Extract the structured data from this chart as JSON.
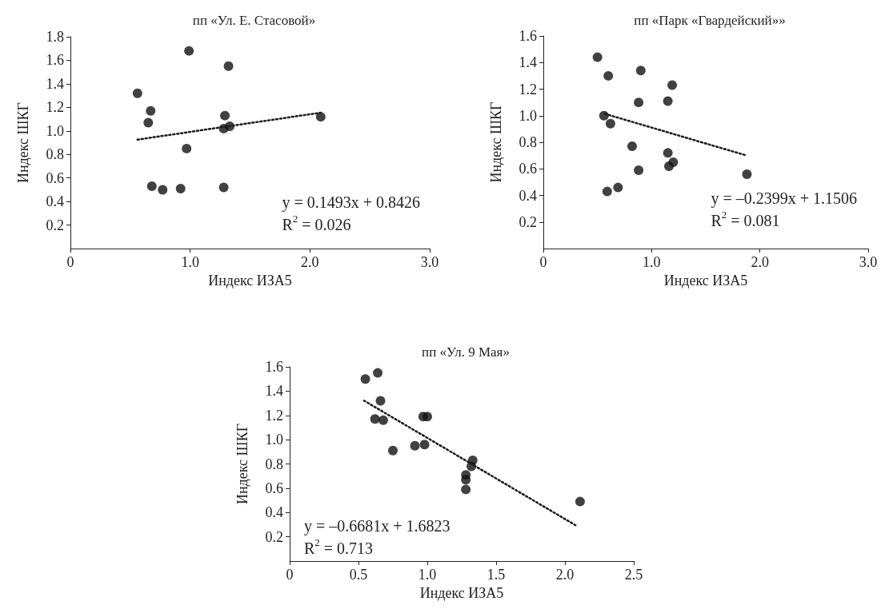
{
  "chart_data": [
    {
      "type": "scatter",
      "title": "пп «Ул. Е. Стасовой»",
      "xlabel": "Индекс ИЗА5",
      "ylabel": "Индекс ШКГ",
      "marker": "circle",
      "grid": false,
      "xlim": [
        0,
        3
      ],
      "xticks": [
        {
          "value": 0,
          "label": "0"
        },
        {
          "value": 1,
          "label": "1.0"
        },
        {
          "value": 2,
          "label": "2.0"
        },
        {
          "value": 3,
          "label": "3.0"
        }
      ],
      "ylim": [
        0,
        1.8
      ],
      "yticks": [
        {
          "value": 0.2,
          "label": "0.2"
        },
        {
          "value": 0.4,
          "label": "0.4"
        },
        {
          "value": 0.6,
          "label": "0.6"
        },
        {
          "value": 0.8,
          "label": "0.8"
        },
        {
          "value": 1,
          "label": "1.0"
        },
        {
          "value": 1.2,
          "label": "1.2"
        },
        {
          "value": 1.4,
          "label": "1.4"
        },
        {
          "value": 1.6,
          "label": "1.6"
        },
        {
          "value": 1.8,
          "label": "1.8"
        }
      ],
      "series": [
        {
          "color": "#111111",
          "x": [
            0.56,
            0.67,
            0.65,
            0.68,
            0.77,
            0.92,
            0.99,
            0.97,
            1.29,
            1.28,
            1.33,
            1.28,
            1.32,
            2.09
          ],
          "values": [
            1.32,
            1.17,
            1.07,
            0.53,
            0.5,
            0.51,
            1.68,
            0.85,
            1.13,
            1.02,
            1.04,
            0.52,
            1.55,
            1.12
          ]
        },
        {
          "type": "line",
          "color": "#1a1a1a",
          "line_style": "dotted",
          "marker": "none",
          "x": [
            0.56,
            2.09
          ],
          "values": [
            0.926,
            1.155
          ]
        }
      ],
      "annotations": [
        "y = 0.1493x + 0.8426",
        "R$^{2}$ = 0.026"
      ]
    },
    {
      "type": "scatter",
      "title": "пп «Парк «Гвардейский»»",
      "xlabel": "Индекс ИЗА5",
      "ylabel": "Индекс ШКГ",
      "marker": "circle",
      "grid": false,
      "xlim": [
        0,
        3
      ],
      "xticks": [
        {
          "value": 0,
          "label": "0"
        },
        {
          "value": 1,
          "label": "1.0"
        },
        {
          "value": 2,
          "label": "2.0"
        },
        {
          "value": 3,
          "label": "3.0"
        }
      ],
      "ylim": [
        0,
        1.6
      ],
      "yticks": [
        {
          "value": 0.2,
          "label": "0.2"
        },
        {
          "value": 0.4,
          "label": "0.4"
        },
        {
          "value": 0.6,
          "label": "0.6"
        },
        {
          "value": 0.8,
          "label": "0.8"
        },
        {
          "value": 1,
          "label": "1.0"
        },
        {
          "value": 1.2,
          "label": "1.2"
        },
        {
          "value": 1.4,
          "label": "1.4"
        },
        {
          "value": 1.6,
          "label": "1.6"
        }
      ],
      "series": [
        {
          "color": "#111111",
          "x": [
            0.5,
            0.6,
            0.9,
            1.19,
            0.88,
            1.15,
            0.56,
            0.62,
            0.82,
            1.15,
            1.2,
            1.16,
            0.88,
            0.59,
            0.69,
            1.88
          ],
          "values": [
            1.44,
            1.3,
            1.34,
            1.23,
            1.1,
            1.11,
            1.0,
            0.94,
            0.77,
            0.72,
            0.65,
            0.62,
            0.59,
            0.43,
            0.46,
            0.56
          ]
        },
        {
          "type": "line",
          "color": "#1a1a1a",
          "line_style": "dotted",
          "marker": "none",
          "x": [
            0.57,
            1.88
          ],
          "values": [
            1.014,
            0.7
          ]
        }
      ],
      "annotations": [
        "y = –0.2399x + 1.1506",
        "R$^{2}$ = 0.081"
      ]
    },
    {
      "type": "scatter",
      "title": "пп «Ул. 9 Мая»",
      "xlabel": "Индекс ИЗА5",
      "ylabel": "Индекс ШКГ",
      "marker": "circle",
      "grid": false,
      "xlim": [
        0,
        2.5
      ],
      "xticks": [
        {
          "value": 0,
          "label": "0"
        },
        {
          "value": 0.5,
          "label": "0.5"
        },
        {
          "value": 1,
          "label": "1.0"
        },
        {
          "value": 1.5,
          "label": "1.5"
        },
        {
          "value": 2,
          "label": "2.0"
        },
        {
          "value": 2.5,
          "label": "2.5"
        }
      ],
      "ylim": [
        0,
        1.6
      ],
      "yticks": [
        {
          "value": 0.2,
          "label": "0.2"
        },
        {
          "value": 0.4,
          "label": "0.4"
        },
        {
          "value": 0.6,
          "label": "0.6"
        },
        {
          "value": 0.8,
          "label": "0.8"
        },
        {
          "value": 1,
          "label": "1.0"
        },
        {
          "value": 1.2,
          "label": "1.2"
        },
        {
          "value": 1.4,
          "label": "1.4"
        },
        {
          "value": 1.6,
          "label": "1.6"
        }
      ],
      "series": [
        {
          "color": "#111111",
          "x": [
            0.55,
            0.64,
            0.66,
            0.62,
            0.68,
            0.75,
            0.91,
            0.98,
            0.97,
            1.0,
            1.33,
            1.32,
            1.28,
            1.28,
            1.28,
            2.11
          ],
          "values": [
            1.5,
            1.55,
            1.32,
            1.17,
            1.16,
            0.91,
            0.95,
            0.96,
            1.19,
            1.19,
            0.83,
            0.78,
            0.71,
            0.67,
            0.59,
            0.49
          ]
        },
        {
          "type": "line",
          "color": "#1a1a1a",
          "line_style": "dotted",
          "marker": "none",
          "x": [
            0.54,
            2.08
          ],
          "values": [
            1.322,
            0.293
          ]
        }
      ],
      "annotations": [
        "y = –0.6681x + 1.6823",
        "R$^{2}$ = 0.713"
      ]
    }
  ]
}
